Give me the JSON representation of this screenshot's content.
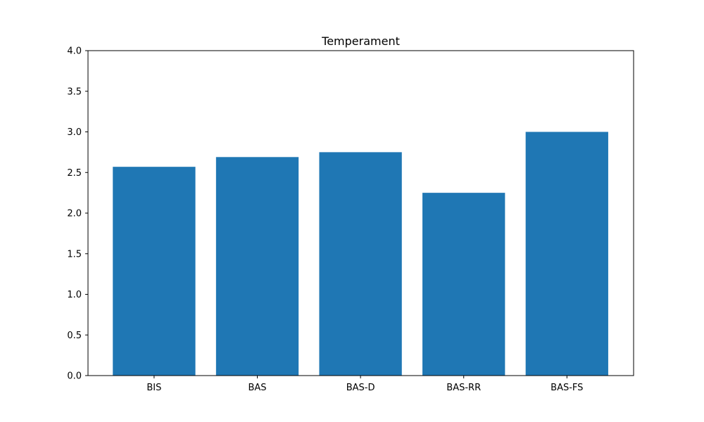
{
  "chart_data": {
    "type": "bar",
    "title": "Temperament",
    "xlabel": "",
    "ylabel": "",
    "categories": [
      "BIS",
      "BAS",
      "BAS-D",
      "BAS-RR",
      "BAS-FS"
    ],
    "values": [
      2.57,
      2.69,
      2.75,
      2.25,
      3.0
    ],
    "ylim": [
      0,
      4
    ],
    "yticks": [
      "0.0",
      "0.5",
      "1.0",
      "1.5",
      "2.0",
      "2.5",
      "3.0",
      "3.5",
      "4.0"
    ],
    "grid": false,
    "legend": "none",
    "bar_color": "#1f77b4"
  }
}
